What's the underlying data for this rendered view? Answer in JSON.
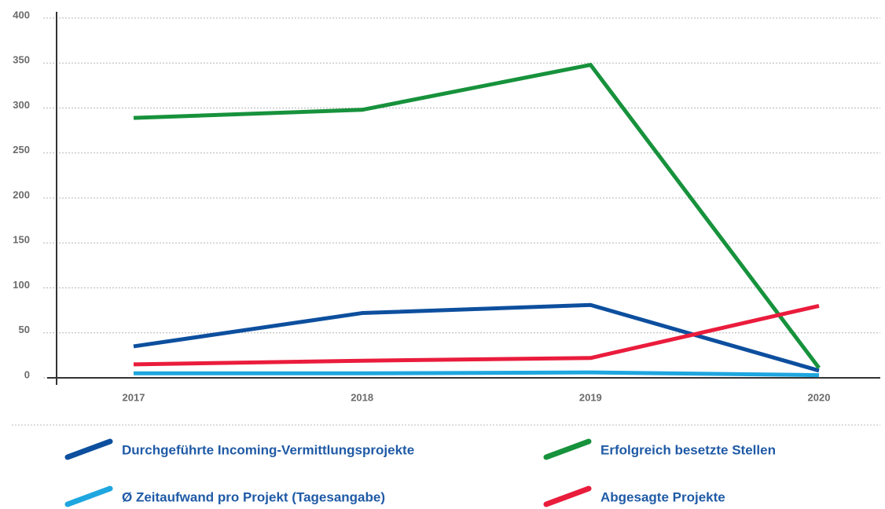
{
  "chart_data": {
    "type": "line",
    "categories": [
      "2017",
      "2018",
      "2019",
      "2020"
    ],
    "series": [
      {
        "name": "Durchgeführte Incoming-Vermittlungsprojekte",
        "color": "#0d4f9e",
        "values": [
          35,
          72,
          81,
          8
        ]
      },
      {
        "name": "Erfolgreich besetzte Stellen",
        "color": "#17923c",
        "values": [
          289,
          298,
          348,
          11
        ]
      },
      {
        "name": "Ø Zeitaufwand pro Projekt (Tagesangabe)",
        "color": "#1ea6df",
        "values": [
          5,
          5,
          6,
          3
        ]
      },
      {
        "name": "Abgesagte Projekte",
        "color": "#ea1c3c",
        "values": [
          15,
          19,
          22,
          80
        ]
      }
    ],
    "ylim": [
      0,
      400
    ],
    "yticks": [
      0,
      50,
      100,
      150,
      200,
      250,
      300,
      350,
      400
    ],
    "grid": true,
    "legend": "bottom"
  }
}
